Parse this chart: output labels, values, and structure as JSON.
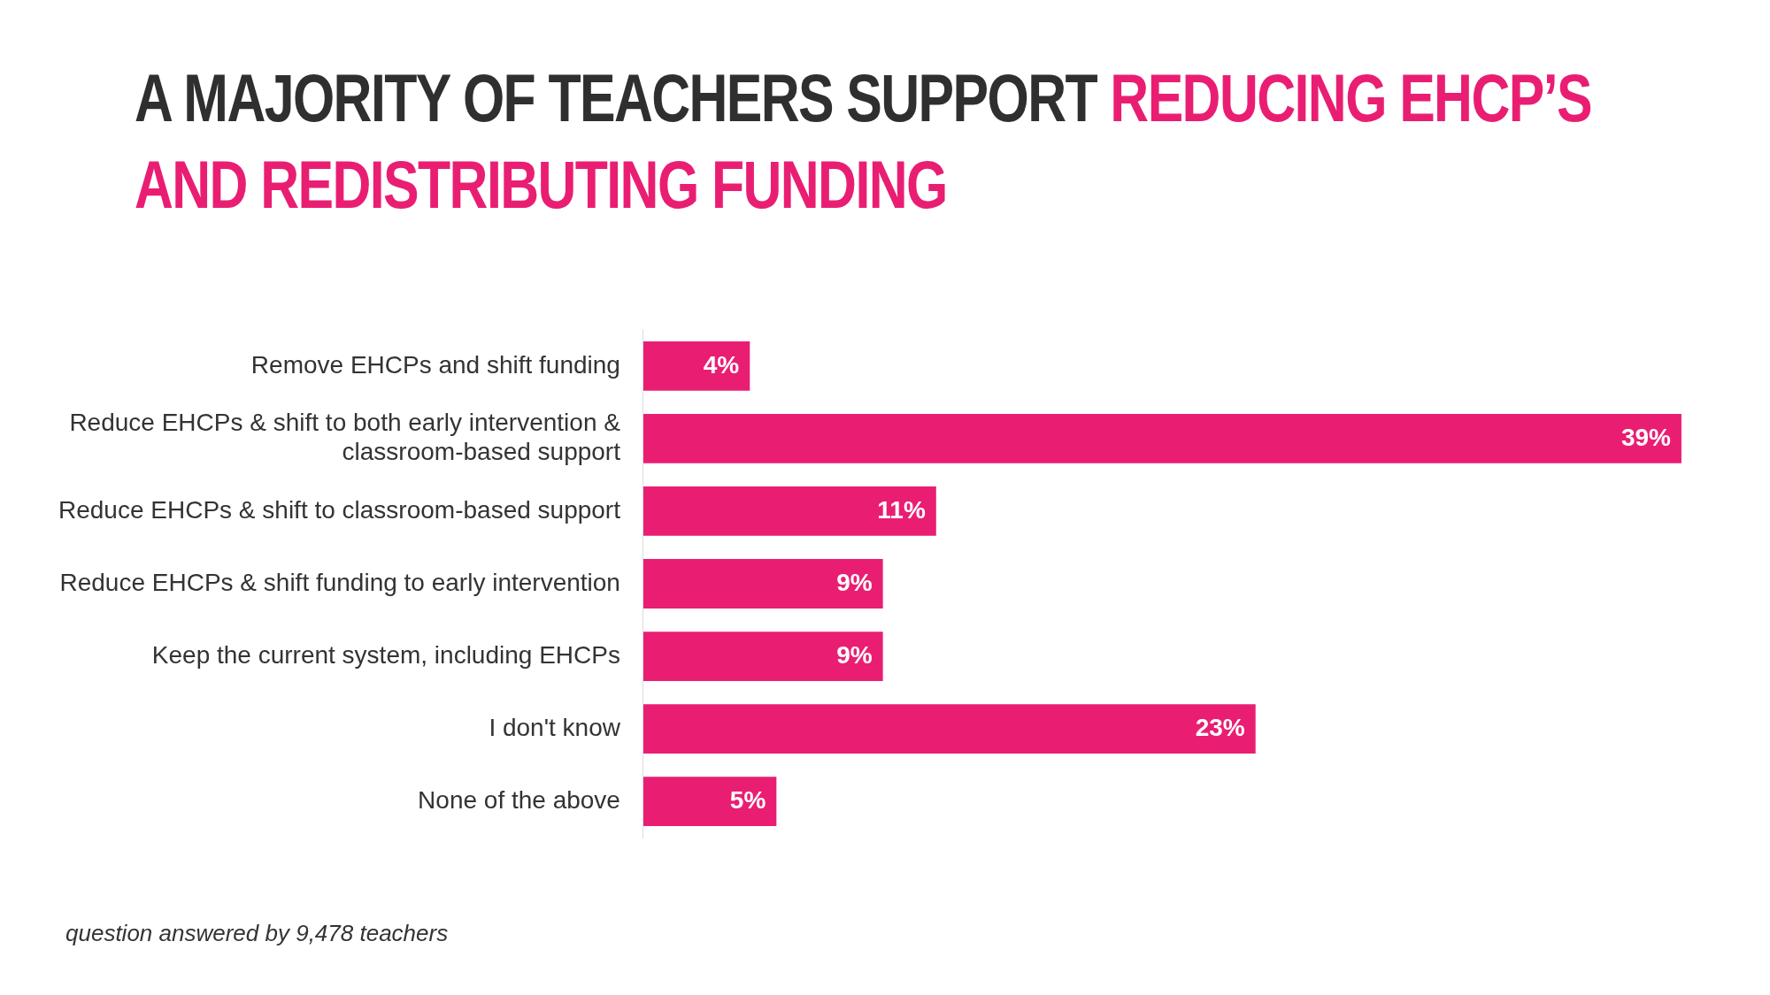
{
  "chart_data": {
    "type": "bar",
    "orientation": "horizontal",
    "title": "A MAJORITY OF TEACHERS SUPPORT REDUCING EHCP’S AND REDISTRIBUTING FUNDING",
    "categories": [
      "Remove EHCPs and shift funding",
      "Reduce EHCPs & shift to both early intervention & classroom-based support",
      "Reduce EHCPs & shift to classroom-based support",
      "Reduce EHCPs & shift funding to early intervention",
      "Keep the current system, including EHCPs",
      "I don't know",
      "None of the above"
    ],
    "values": [
      4,
      39,
      11,
      9,
      9,
      23,
      5
    ],
    "color": "#e91e72",
    "value_labels": [
      "4%",
      "39%",
      "11%",
      "9%",
      "9%",
      "23%",
      "5%"
    ],
    "annotations": [
      "question answered by 9,478 teachers"
    ]
  }
}
